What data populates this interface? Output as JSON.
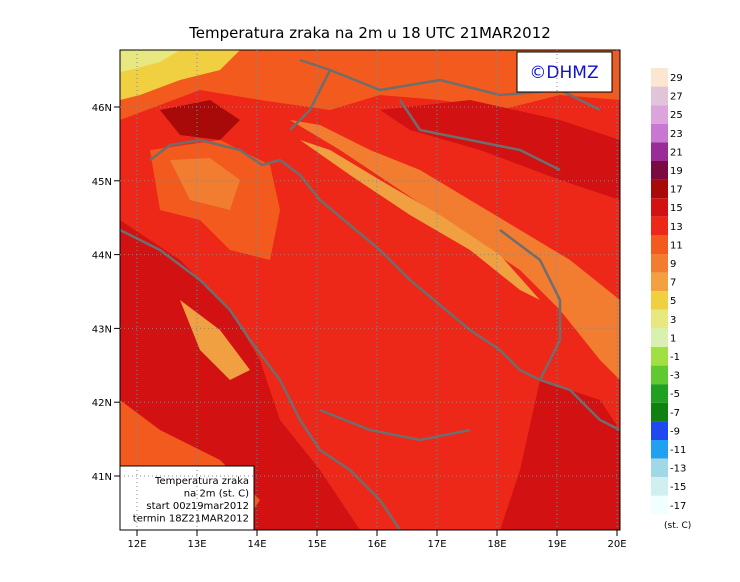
{
  "header": {
    "title": "Temperatura zraka na 2m u 18 UTC 21MAR2012",
    "logo": "©DHMZ"
  },
  "map": {
    "x_labels": [
      "12E",
      "13E",
      "14E",
      "15E",
      "16E",
      "17E",
      "18E",
      "19E",
      "20E"
    ],
    "y_labels": [
      "46N",
      "45N",
      "44N",
      "43N",
      "42N",
      "41N"
    ]
  },
  "info": {
    "lines": [
      "Temperatura zraka",
      "na 2m (st. C)",
      "start 00z19mar2012",
      "termin 18Z21MAR2012"
    ]
  },
  "legend": {
    "levels": [
      "29",
      "27",
      "25",
      "23",
      "21",
      "19",
      "17",
      "15",
      "13",
      "11",
      "9",
      "7",
      "5",
      "3",
      "1",
      "-1",
      "-3",
      "-5",
      "-7",
      "-9",
      "-11",
      "-13",
      "-15",
      "-17"
    ],
    "colors": [
      "#fbe6d2",
      "#e2c4d8",
      "#dca4dc",
      "#c878d2",
      "#9a2c98",
      "#7a0a40",
      "#a80a0a",
      "#d21212",
      "#ee2818",
      "#f25a1e",
      "#f27c30",
      "#f2a040",
      "#f0d040",
      "#e8e880",
      "#d8f0b0",
      "#a0e040",
      "#60c830",
      "#20a020",
      "#108010",
      "#2048f0",
      "#20a0f0",
      "#a0d8e8",
      "#d0f0f0",
      "#f0ffff"
    ],
    "unit": "(st. C)"
  }
}
